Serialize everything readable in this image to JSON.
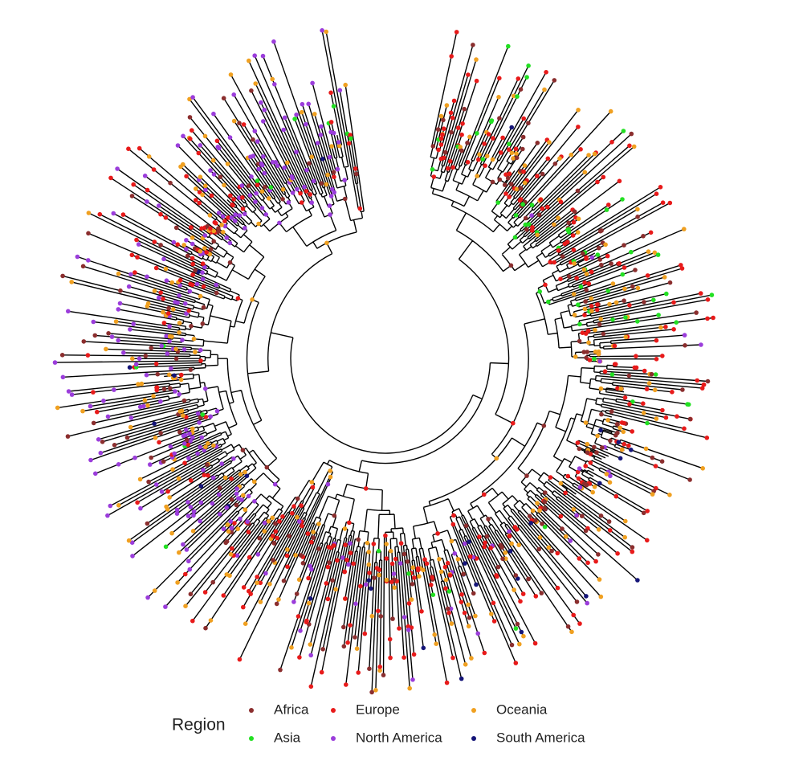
{
  "legend": {
    "title": "Region",
    "items": [
      {
        "label": "Africa",
        "color": "#8b2e2e"
      },
      {
        "label": "Asia",
        "color": "#22e022"
      },
      {
        "label": "Europe",
        "color": "#e81a1a"
      },
      {
        "label": "North America",
        "color": "#9b3ddb"
      },
      {
        "label": "Oceania",
        "color": "#f0a020"
      },
      {
        "label": "South America",
        "color": "#141478"
      }
    ]
  }
}
